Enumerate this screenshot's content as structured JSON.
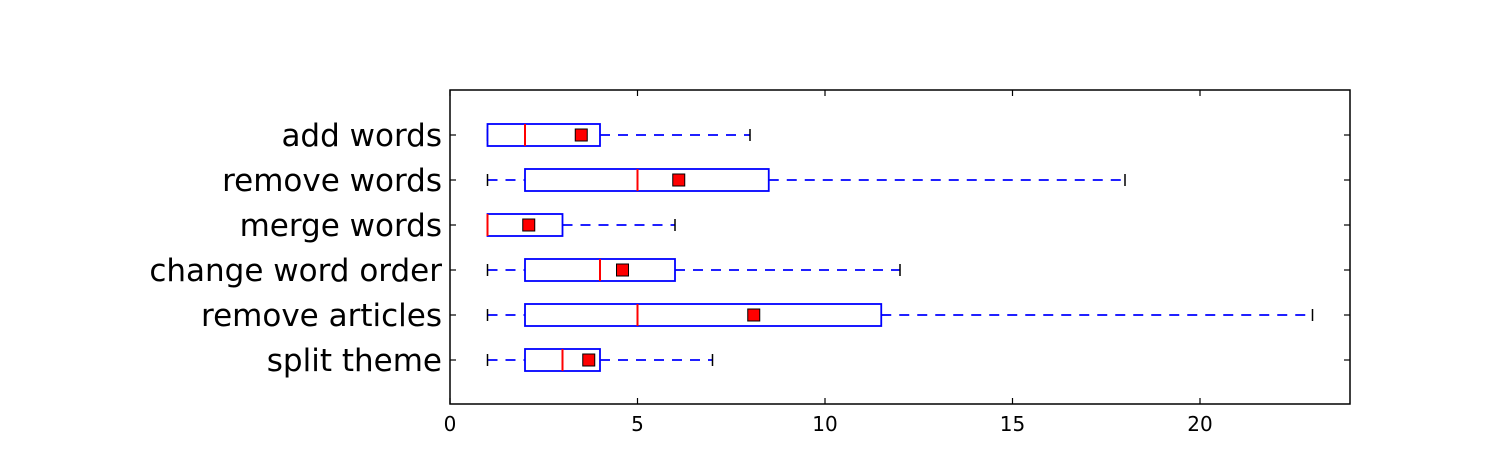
{
  "chart_data": {
    "type": "boxplot",
    "orientation": "horizontal",
    "xlim": [
      0,
      24
    ],
    "xticks": [
      0,
      5,
      10,
      15,
      20
    ],
    "grid": false,
    "colors": {
      "box": "#0000ff",
      "median": "#ff0000",
      "mean_marker": "#ff0000",
      "whisker_cap": "#000000",
      "axes": "#000000"
    },
    "categories": [
      "add words",
      "remove words",
      "merge words",
      "change word order",
      "remove articles",
      "split theme"
    ],
    "series": [
      {
        "category": "add words",
        "whisker_low": 1,
        "q1": 1,
        "median": 2,
        "q3": 4,
        "whisker_high": 8,
        "mean": 3.5
      },
      {
        "category": "remove words",
        "whisker_low": 1,
        "q1": 2,
        "median": 5,
        "q3": 8.5,
        "whisker_high": 18,
        "mean": 6.1
      },
      {
        "category": "merge words",
        "whisker_low": 1,
        "q1": 1,
        "median": 1,
        "q3": 3,
        "whisker_high": 6,
        "mean": 2.1
      },
      {
        "category": "change word order",
        "whisker_low": 1,
        "q1": 2,
        "median": 4,
        "q3": 6,
        "whisker_high": 12,
        "mean": 4.6
      },
      {
        "category": "remove articles",
        "whisker_low": 1,
        "q1": 2,
        "median": 5,
        "q3": 11.5,
        "whisker_high": 23,
        "mean": 8.1
      },
      {
        "category": "split theme",
        "whisker_low": 1,
        "q1": 2,
        "median": 3,
        "q3": 4,
        "whisker_high": 7,
        "mean": 3.7
      }
    ]
  }
}
